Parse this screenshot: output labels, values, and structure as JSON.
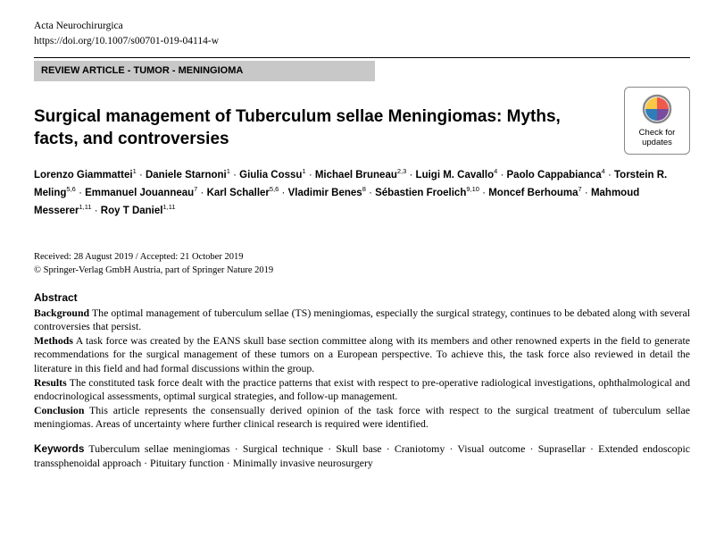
{
  "journal": "Acta Neurochirurgica",
  "doi": "https://doi.org/10.1007/s00701-019-04114-w",
  "category": "REVIEW ARTICLE - TUMOR - MENINGIOMA",
  "title": "Surgical management of Tuberculum sellae Meningiomas: Myths, facts, and controversies",
  "checkUpdates": "Check for updates",
  "authors": [
    {
      "name": "Lorenzo Giammattei",
      "aff": "1"
    },
    {
      "name": "Daniele Starnoni",
      "aff": "1"
    },
    {
      "name": "Giulia Cossu",
      "aff": "1"
    },
    {
      "name": "Michael Bruneau",
      "aff": "2,3"
    },
    {
      "name": "Luigi M. Cavallo",
      "aff": "4"
    },
    {
      "name": "Paolo Cappabianca",
      "aff": "4"
    },
    {
      "name": "Torstein R. Meling",
      "aff": "5,6"
    },
    {
      "name": "Emmanuel Jouanneau",
      "aff": "7"
    },
    {
      "name": "Karl Schaller",
      "aff": "5,6"
    },
    {
      "name": "Vladimir Benes",
      "aff": "8"
    },
    {
      "name": "Sébastien Froelich",
      "aff": "9,10"
    },
    {
      "name": "Moncef Berhouma",
      "aff": "7"
    },
    {
      "name": "Mahmoud Messerer",
      "aff": "1,11"
    },
    {
      "name": "Roy T Daniel",
      "aff": "1,11"
    }
  ],
  "received": "Received: 28 August 2019 / Accepted: 21 October 2019",
  "copyright": "© Springer-Verlag GmbH Austria, part of Springer Nature 2019",
  "abstractHead": "Abstract",
  "sections": {
    "background": {
      "label": "Background",
      "text": " The optimal management of tuberculum sellae (TS) meningiomas, especially the surgical strategy, continues to be debated along with several controversies that persist."
    },
    "methods": {
      "label": "Methods",
      "text": " A task force was created by the EANS skull base section committee along with its members and other renowned experts in the field to generate recommendations for the surgical management of these tumors on a European perspective. To achieve this, the task force also reviewed in detail the literature in this field and had formal discussions within the group."
    },
    "results": {
      "label": "Results",
      "text": " The constituted task force dealt with the practice patterns that exist with respect to pre-operative radiological investigations, ophthalmological and endocrinological assessments, optimal surgical strategies, and follow-up management."
    },
    "conclusion": {
      "label": "Conclusion",
      "text": " This article represents the consensually derived opinion of the task force with respect to the surgical treatment of tuberculum sellae meningiomas. Areas of uncertainty where further clinical research is required were identified."
    }
  },
  "keywordsLabel": "Keywords",
  "keywords": " Tuberculum sellae meningiomas · Surgical technique · Skull base · Craniotomy · Visual outcome · Suprasellar · Extended endoscopic transsphenoidal approach · Pituitary function · Minimally invasive neurosurgery",
  "colors": {
    "bar": "#c8c8c8",
    "crossmark": "#e84c3d"
  }
}
